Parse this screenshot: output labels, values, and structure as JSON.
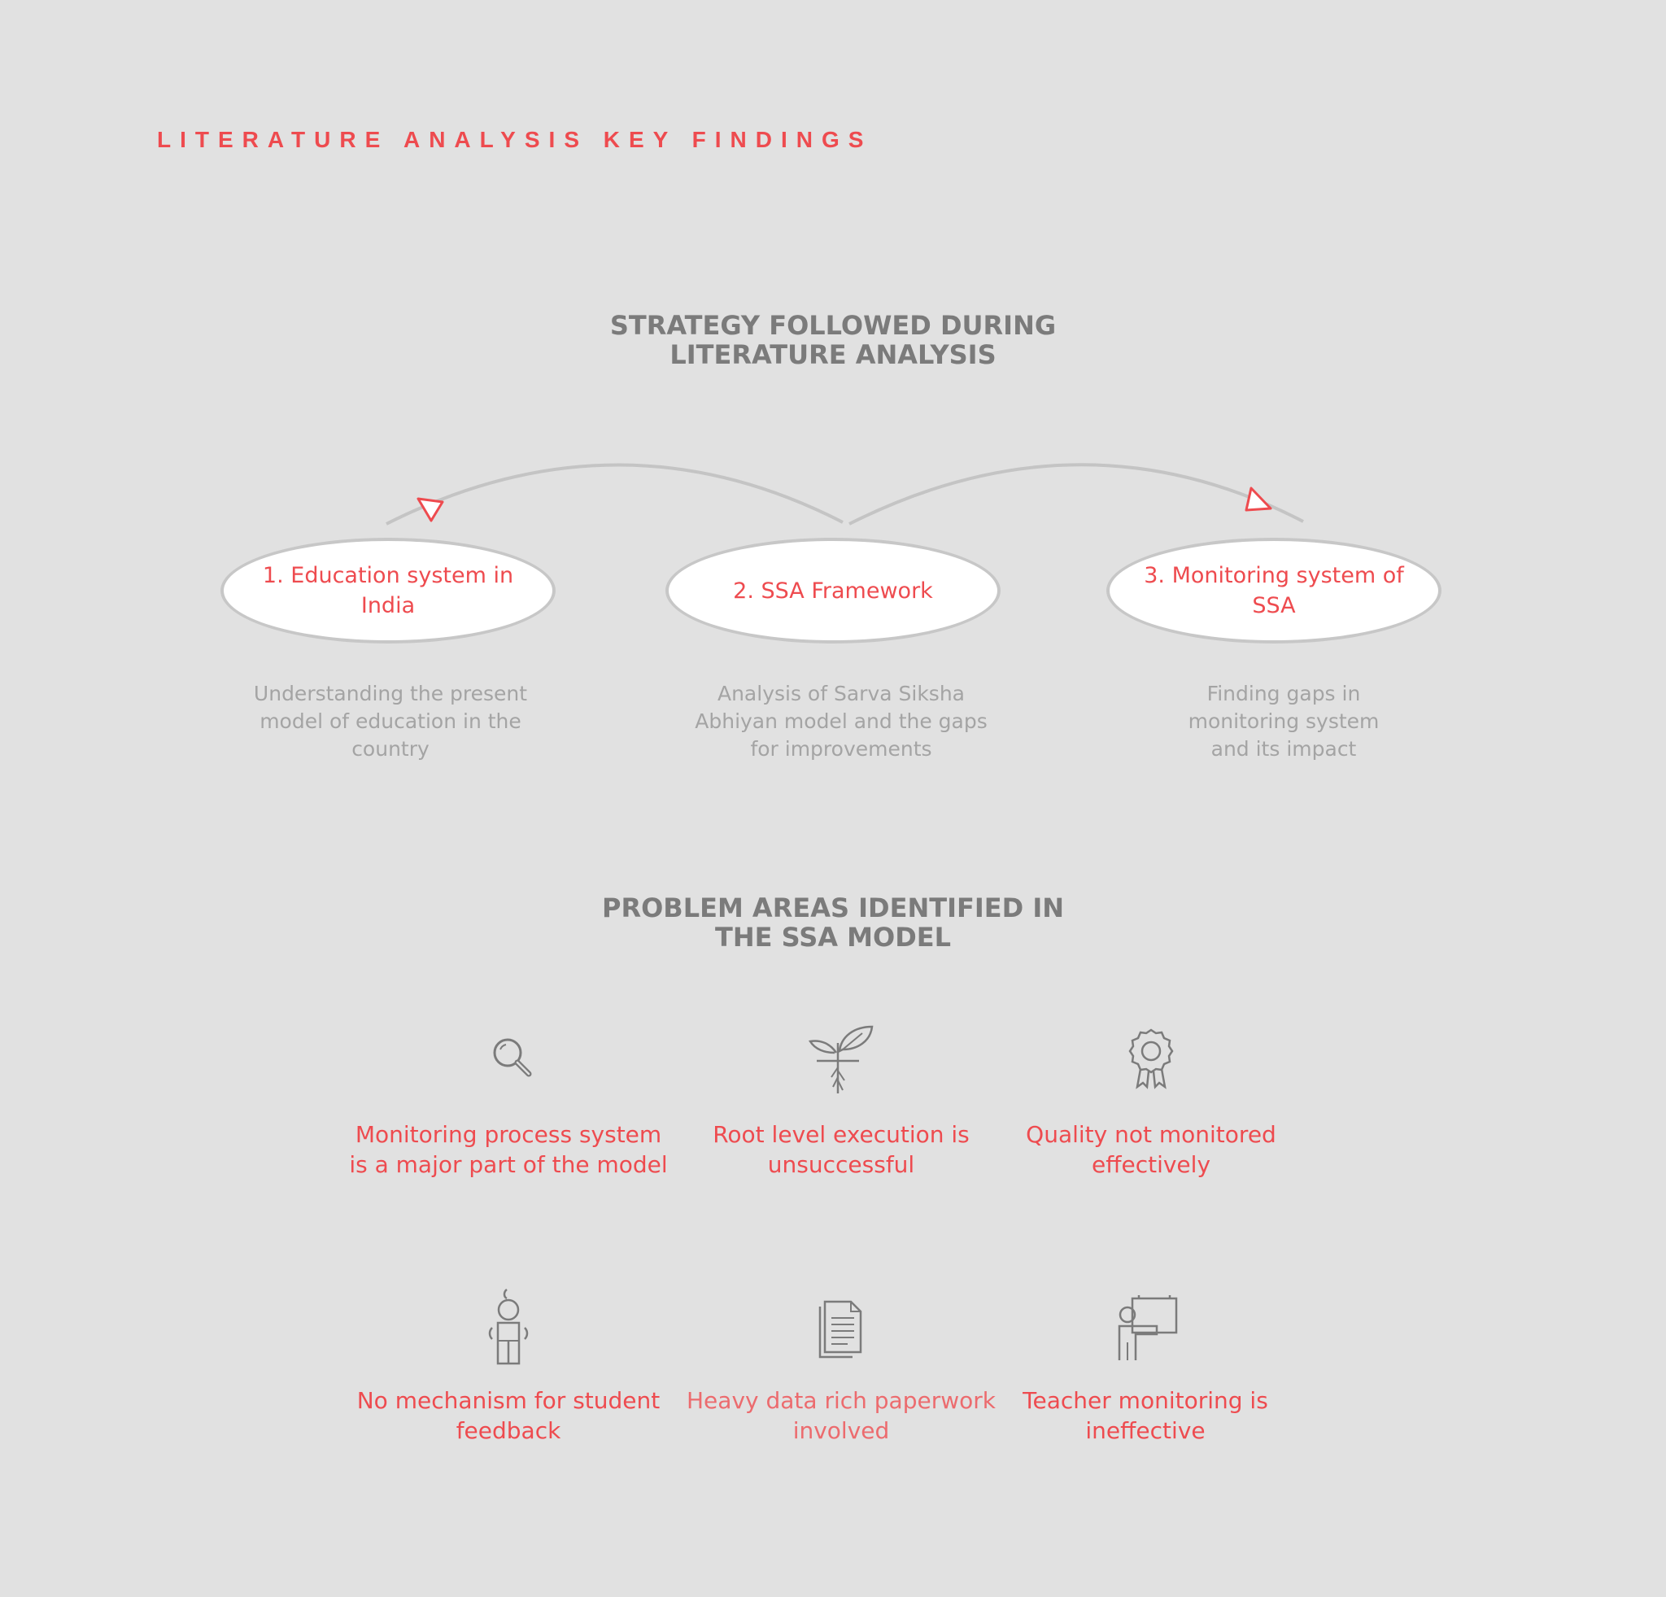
{
  "header": {
    "title": "LITERATURE ANALYSIS KEY FINDINGS"
  },
  "strategy": {
    "title_lines": [
      "STRATEGY FOLLOWED DURING",
      "LITERATURE ANALYSIS"
    ],
    "steps": [
      {
        "label": "1. Education system in India",
        "description": "Understanding the present model of education in the country"
      },
      {
        "label": "2. SSA Framework",
        "description": "Analysis of Sarva Siksha Abhiyan model and the gaps for improvements"
      },
      {
        "label": "3. Monitoring system of SSA",
        "description": "Finding gaps in monitoring system and its impact"
      }
    ]
  },
  "problems": {
    "title_lines": [
      "PROBLEM AREAS IDENTIFIED IN",
      "THE SSA MODEL"
    ],
    "items": [
      {
        "icon": "magnifier-icon",
        "label": "Monitoring process system is a major part of the model"
      },
      {
        "icon": "sprout-icon",
        "label": "Root level execution is unsuccessful"
      },
      {
        "icon": "award-ribbon-icon",
        "label": "Quality not monitored effectively"
      },
      {
        "icon": "student-icon",
        "label": "No mechanism for student feedback"
      },
      {
        "icon": "document-stack-icon",
        "label": "Heavy data rich paperwork involved"
      },
      {
        "icon": "teacher-board-icon",
        "label": "Teacher monitoring is  ineffective"
      }
    ]
  },
  "colors": {
    "accent": "#ee4b4f",
    "heading": "#7b7b7b",
    "muted_text": "#a4a4a4",
    "background": "#e1e1e1"
  }
}
